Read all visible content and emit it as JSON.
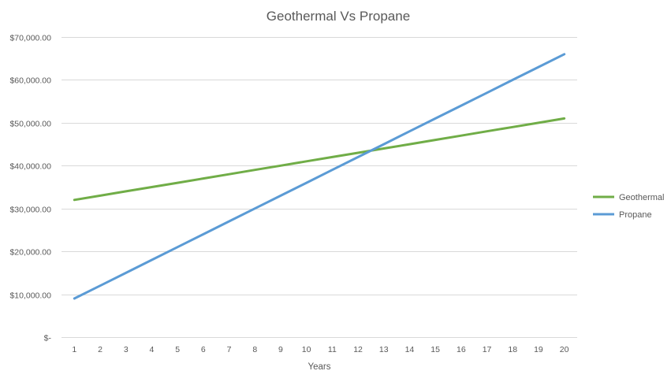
{
  "chart_data": {
    "type": "line",
    "title": "Geothermal Vs Propane",
    "xlabel": "Years",
    "ylabel": "",
    "categories": [
      "1",
      "2",
      "3",
      "4",
      "5",
      "6",
      "7",
      "8",
      "9",
      "10",
      "11",
      "12",
      "13",
      "14",
      "15",
      "16",
      "17",
      "18",
      "19",
      "20"
    ],
    "y_tick_labels": [
      "$-",
      "$10,000.00",
      "$20,000.00",
      "$30,000.00",
      "$40,000.00",
      "$50,000.00",
      "$60,000.00",
      "$70,000.00"
    ],
    "y_ticks": [
      0,
      10000,
      20000,
      30000,
      40000,
      50000,
      60000,
      70000
    ],
    "ylim": [
      0,
      70000
    ],
    "grid": true,
    "legend_position": "right",
    "series": [
      {
        "name": "Geothermal",
        "color": "#70ad47",
        "values": [
          32000,
          33000,
          34000,
          35000,
          36000,
          37000,
          38000,
          39000,
          40000,
          41000,
          42000,
          43000,
          44000,
          45000,
          46000,
          47000,
          48000,
          49000,
          50000,
          51000
        ]
      },
      {
        "name": "Propane",
        "color": "#5b9bd5",
        "values": [
          9000,
          12000,
          15000,
          18000,
          21000,
          24000,
          27000,
          30000,
          33000,
          36000,
          39000,
          42000,
          45000,
          48000,
          51000,
          54000,
          57000,
          60000,
          63000,
          66000
        ]
      }
    ]
  }
}
